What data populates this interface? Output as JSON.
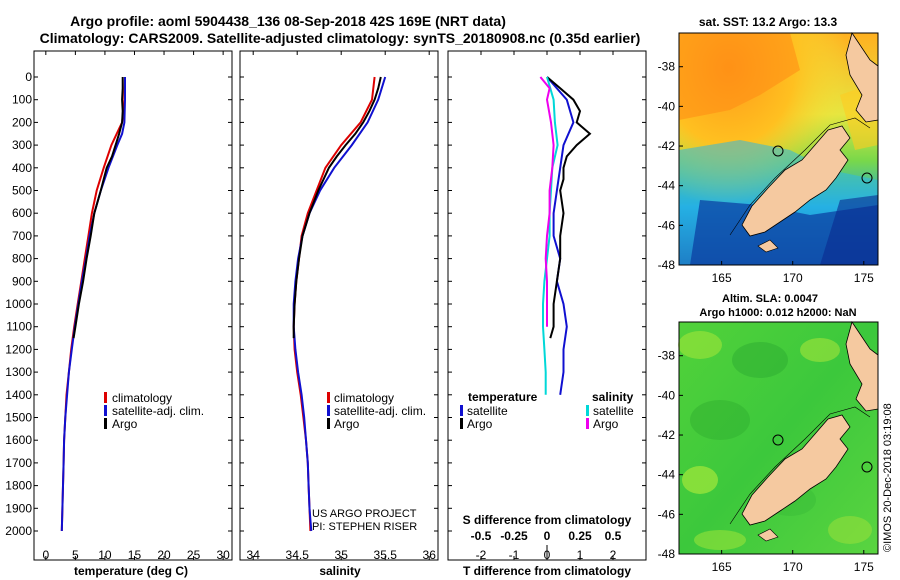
{
  "header": {
    "title_line1": "Argo profile: aoml 5904438_136 08-Sep-2018 42S 169E (NRT data)",
    "title_line2": "Climatology: CARS2009. Satellite-adjusted climatology: synTS_20180908.nc (0.35d earlier)"
  },
  "colors": {
    "climatology": "#dd0000",
    "satellite": "#1010d0",
    "argo": "#000000",
    "satellite_s": "#00d8d8",
    "argo_s": "#ee00ee"
  },
  "chart_data": [
    {
      "type": "line",
      "name": "temperature-profile",
      "xlabel": "temperature (deg C)",
      "ylabel": "depth",
      "xlim": [
        -2,
        31.5
      ],
      "ylim": [
        0,
        2040
      ],
      "xticks": [
        0,
        5,
        10,
        15,
        20,
        25,
        30
      ],
      "yticks": [
        0,
        100,
        200,
        300,
        400,
        500,
        600,
        700,
        800,
        900,
        1000,
        1100,
        1200,
        1300,
        1400,
        1500,
        1600,
        1700,
        1800,
        1900,
        2000
      ],
      "legend": [
        "climatology",
        "satellite-adj. clim.",
        "Argo"
      ],
      "series": [
        {
          "name": "climatology",
          "color_key": "climatology",
          "depth": [
            0,
            100,
            200,
            250,
            300,
            400,
            500,
            600,
            700,
            800,
            900,
            1000,
            1100,
            1200,
            1300,
            1400,
            1500,
            1600,
            1700,
            1800,
            1900,
            2000
          ],
          "values": [
            13.4,
            13.3,
            12.9,
            12.0,
            11.1,
            9.8,
            8.6,
            7.8,
            7.2,
            6.6,
            6.0,
            5.4,
            4.8,
            4.3,
            3.9,
            3.5,
            3.3,
            3.1,
            3.0,
            2.9,
            2.8,
            2.7
          ]
        },
        {
          "name": "satellite-adj. clim.",
          "color_key": "satellite",
          "depth": [
            0,
            100,
            200,
            250,
            300,
            400,
            500,
            600,
            700,
            800,
            900,
            1000,
            1100,
            1200,
            1300,
            1400,
            1500,
            1600,
            1700,
            1800,
            1900,
            2000
          ],
          "values": [
            13.4,
            13.4,
            13.3,
            12.9,
            12.1,
            10.6,
            9.3,
            8.2,
            7.4,
            6.8,
            6.1,
            5.5,
            4.9,
            4.4,
            3.9,
            3.6,
            3.3,
            3.1,
            3.0,
            2.9,
            2.8,
            2.7
          ]
        },
        {
          "name": "Argo",
          "color_key": "argo",
          "depth": [
            0,
            50,
            100,
            150,
            200,
            250,
            300,
            350,
            400,
            450,
            500,
            600,
            700,
            800,
            900,
            1000,
            1100,
            1150
          ],
          "values": [
            13.0,
            13.0,
            12.9,
            13.0,
            12.9,
            12.4,
            11.8,
            11.2,
            10.3,
            9.8,
            9.3,
            8.2,
            7.6,
            6.9,
            6.3,
            5.6,
            5.0,
            4.7
          ]
        }
      ]
    },
    {
      "type": "line",
      "name": "salinity-profile",
      "xlabel": "salinity",
      "xlim": [
        33.85,
        36.1
      ],
      "ylim": [
        0,
        2040
      ],
      "xticks": [
        34,
        34.5,
        35,
        35.5,
        36
      ],
      "legend": [
        "climatology",
        "satellite-adj. clim.",
        "Argo"
      ],
      "annotation_line1": "US ARGO PROJECT",
      "annotation_line2": "PI: STEPHEN RISER",
      "series": [
        {
          "name": "climatology",
          "color_key": "climatology",
          "depth": [
            0,
            100,
            200,
            300,
            400,
            500,
            600,
            700,
            800,
            900,
            1000,
            1100,
            1200,
            1300,
            1400,
            1500,
            1600,
            1700,
            1800,
            1900,
            2000
          ],
          "values": [
            35.38,
            35.35,
            35.22,
            35.0,
            34.82,
            34.72,
            34.62,
            34.55,
            34.52,
            34.49,
            34.47,
            34.46,
            34.47,
            34.5,
            34.54,
            34.57,
            34.6,
            34.62,
            34.63,
            34.64,
            34.65
          ]
        },
        {
          "name": "satellite-adj. clim.",
          "color_key": "satellite",
          "depth": [
            0,
            100,
            200,
            300,
            400,
            500,
            600,
            700,
            800,
            900,
            1000,
            1100,
            1200,
            1300,
            1400,
            1500,
            1600,
            1700,
            1800,
            1900,
            2000
          ],
          "values": [
            35.5,
            35.42,
            35.3,
            35.12,
            34.92,
            34.76,
            34.64,
            34.56,
            34.51,
            34.48,
            34.46,
            34.46,
            34.48,
            34.51,
            34.55,
            34.58,
            34.6,
            34.62,
            34.63,
            34.64,
            34.66
          ]
        },
        {
          "name": "Argo",
          "color_key": "argo",
          "depth": [
            0,
            50,
            100,
            150,
            200,
            250,
            300,
            350,
            400,
            450,
            500,
            600,
            700,
            800,
            900,
            1000,
            1100,
            1150
          ],
          "values": [
            35.45,
            35.42,
            35.38,
            35.32,
            35.25,
            35.16,
            35.05,
            34.95,
            34.86,
            34.8,
            34.74,
            34.64,
            34.56,
            34.52,
            34.49,
            34.47,
            34.46,
            34.46
          ]
        }
      ]
    },
    {
      "type": "line",
      "name": "difference-profile",
      "xlabel": "T difference from climatology",
      "xlabel_top": "S difference from climatology",
      "xlim": [
        -3,
        3
      ],
      "ylim": [
        0,
        2040
      ],
      "xticks": [
        -2,
        -1,
        0,
        1,
        2
      ],
      "xticks_top": [
        -0.5,
        -0.25,
        0,
        0.25,
        0.5
      ],
      "xticks_top_labels": [
        "-0.5",
        "-0.25",
        "0",
        "0.25",
        "0.5"
      ],
      "legend_temperature_title": "temperature",
      "legend_salinity_title": "salinity",
      "legend": [
        "satellite",
        "Argo",
        "satellite",
        "Argo"
      ],
      "series": [
        {
          "name": "satellite T",
          "color_key": "satellite",
          "depth": [
            0,
            100,
            200,
            300,
            400,
            500,
            600,
            700,
            800,
            900,
            1000,
            1100,
            1200,
            1300,
            1400
          ],
          "values": [
            0.0,
            0.6,
            0.8,
            0.5,
            0.4,
            0.3,
            0.2,
            0.2,
            0.4,
            0.3,
            0.5,
            0.6,
            0.5,
            0.5,
            0.4
          ]
        },
        {
          "name": "Argo T",
          "color_key": "argo",
          "depth": [
            0,
            50,
            100,
            150,
            200,
            250,
            300,
            350,
            400,
            450,
            500,
            600,
            700,
            800,
            900,
            1000,
            1100,
            1150
          ],
          "values": [
            0.0,
            0.4,
            0.8,
            1.0,
            0.9,
            1.3,
            0.9,
            0.6,
            0.5,
            0.5,
            0.4,
            0.5,
            0.4,
            0.4,
            0.3,
            0.2,
            0.2,
            0.1
          ]
        },
        {
          "name": "satellite S",
          "color_key": "satellite_s",
          "depth": [
            0,
            100,
            200,
            300,
            400,
            500,
            600,
            700,
            800,
            900,
            1000,
            1100,
            1200,
            1300,
            1400
          ],
          "values": [
            0.0,
            0.05,
            0.06,
            0.08,
            0.04,
            0.03,
            0.02,
            0.02,
            0.0,
            -0.02,
            -0.03,
            -0.03,
            -0.02,
            -0.01,
            -0.01
          ]
        },
        {
          "name": "Argo S",
          "color_key": "argo_s",
          "depth": [
            0,
            50,
            100,
            200,
            300,
            400,
            500,
            600,
            700,
            800,
            900,
            1000,
            1100
          ],
          "values": [
            -0.05,
            0.02,
            0.0,
            0.03,
            0.05,
            0.04,
            0.02,
            0.02,
            0.0,
            -0.01,
            0.0,
            0.0,
            0.0
          ]
        }
      ]
    },
    {
      "type": "heatmap",
      "name": "sst-map",
      "title": "sat. SST: 13.2 Argo: 13.3",
      "xlim": [
        162,
        176
      ],
      "ylim": [
        -48,
        -36.3
      ],
      "xticks": [
        165,
        170,
        175
      ],
      "yticks": [
        -38,
        -40,
        -42,
        -44,
        -46,
        -48
      ]
    },
    {
      "type": "heatmap",
      "name": "sla-map",
      "title_line1": "Altim. SLA: 0.0047",
      "title_line2": "Argo h1000: 0.012 h2000: NaN",
      "xlim": [
        162,
        176
      ],
      "ylim": [
        -48,
        -36.3
      ],
      "xticks": [
        165,
        170,
        175
      ],
      "yticks": [
        -38,
        -40,
        -42,
        -44,
        -46,
        -48
      ]
    }
  ],
  "footer": {
    "timestamp": "©IMOS 20-Dec-2018 03:19:08"
  }
}
